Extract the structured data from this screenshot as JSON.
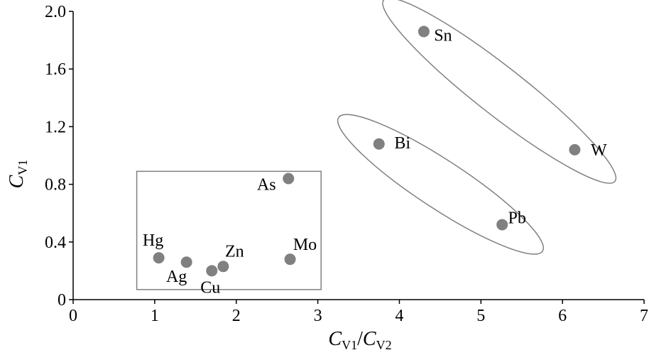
{
  "chart_data": {
    "type": "scatter",
    "xlabel": {
      "main": "C",
      "sub": "V1",
      "sep": "/",
      "main2": "C",
      "sub2": "V2"
    },
    "ylabel": {
      "main": "C",
      "sub": "V1"
    },
    "xlim": [
      0,
      7
    ],
    "ylim": [
      0,
      2.0
    ],
    "xticks": [
      "0",
      "1",
      "2",
      "3",
      "4",
      "5",
      "6",
      "7"
    ],
    "yticks": [
      "0",
      "0.4",
      "0.8",
      "1.2",
      "1.6",
      "2.0"
    ],
    "grid": false,
    "legend": "none",
    "colors": {
      "point": "#808080",
      "outline": "#808080",
      "axis": "#000000"
    },
    "points": [
      {
        "label": "Hg",
        "x": 1.05,
        "y": 0.29
      },
      {
        "label": "Ag",
        "x": 1.39,
        "y": 0.26
      },
      {
        "label": "Cu",
        "x": 1.7,
        "y": 0.2
      },
      {
        "label": "Zn",
        "x": 1.84,
        "y": 0.23
      },
      {
        "label": "Mo",
        "x": 2.66,
        "y": 0.28
      },
      {
        "label": "As",
        "x": 2.64,
        "y": 0.84
      },
      {
        "label": "Bi",
        "x": 3.75,
        "y": 1.08
      },
      {
        "label": "Pb",
        "x": 5.26,
        "y": 0.52
      },
      {
        "label": "Sn",
        "x": 4.3,
        "y": 1.86
      },
      {
        "label": "W",
        "x": 6.15,
        "y": 1.04
      }
    ],
    "groups": [
      {
        "shape": "rectangle",
        "members": [
          "Hg",
          "Ag",
          "Cu",
          "Zn",
          "Mo",
          "As"
        ],
        "x_range": [
          0.78,
          3.04
        ],
        "y_range": [
          0.07,
          0.89
        ]
      },
      {
        "shape": "ellipse",
        "members": [
          "Bi",
          "Pb"
        ]
      },
      {
        "shape": "ellipse",
        "members": [
          "Sn",
          "W"
        ]
      }
    ]
  }
}
